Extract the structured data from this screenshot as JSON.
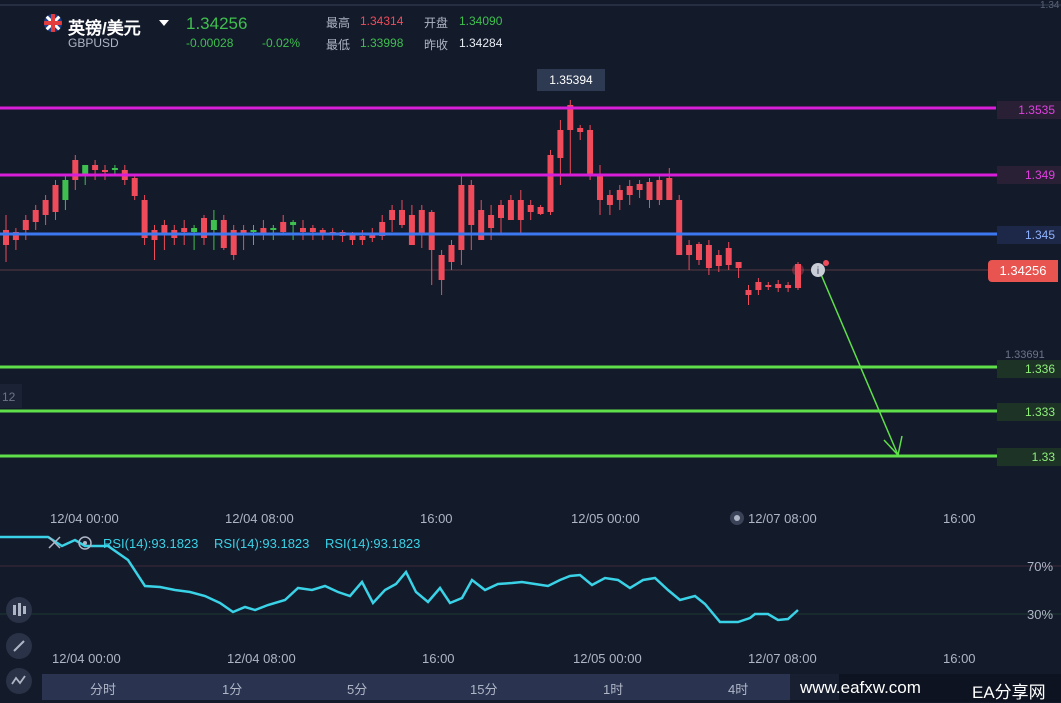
{
  "header": {
    "title": "英镑/美元",
    "symbol": "GBPUSD",
    "price": "1.34256",
    "change": "-0.00028",
    "change_pct": "-0.02%",
    "high_label": "最高",
    "high_value": "1.34314",
    "low_label": "最低",
    "low_value": "1.33998",
    "open_label": "开盘",
    "open_value": "1.34090",
    "prev_close_label": "昨收",
    "prev_close_value": "1.34284"
  },
  "price_axis": {
    "peak_label": "1.35394",
    "lines": [
      {
        "label": "1.3535",
        "color": "#d81ed8"
      },
      {
        "label": "1.349",
        "color": "#d81ed8"
      },
      {
        "label": "1.345",
        "color": "#3c78f0"
      },
      {
        "label": "1.336",
        "color": "#5fe04a"
      },
      {
        "label": "1.333",
        "color": "#5fe04a"
      },
      {
        "label": "1.33",
        "color": "#5fe04a"
      }
    ],
    "current_tag": "1.34256",
    "low_tick": "1.33691",
    "left_cut": "12",
    "right_cut_top": "1.34"
  },
  "time_axis": [
    "12/04 00:00",
    "12/04 08:00",
    "16:00",
    "12/05 00:00",
    "12/07 08:00",
    "16:00"
  ],
  "rsi": {
    "legends": [
      "RSI(14):93.1823",
      "RSI(14):93.1823",
      "RSI(14):93.1823"
    ],
    "levels": [
      "70%",
      "30%"
    ],
    "time_axis": [
      "12/04 00:00",
      "12/04 08:00",
      "16:00",
      "12/05 00:00",
      "12/07 08:00",
      "16:00"
    ]
  },
  "timeframes": [
    "分时",
    "1分",
    "5分",
    "15分",
    "1时",
    "4时"
  ],
  "watermark": {
    "site": "www.eafxw.com",
    "brand": "EA分享网"
  },
  "colors": {
    "up": "#3fbf4f",
    "down": "#ef4b5a",
    "background": "#131a2a",
    "rsi": "#3ad2e6"
  }
}
